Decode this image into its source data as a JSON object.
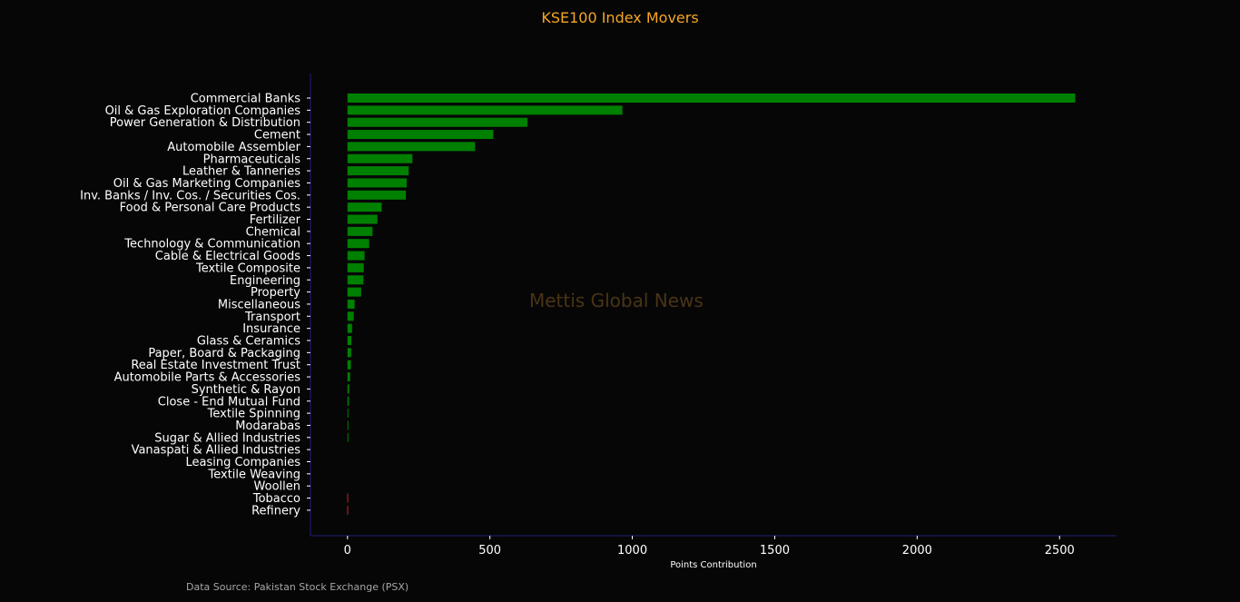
{
  "chart_data": {
    "type": "bar",
    "orientation": "horizontal",
    "title": "KSE100 Index Movers",
    "xlabel": "Points Contribution",
    "ylabel": "",
    "xlim": [
      -130,
      2700
    ],
    "xticks": [
      0,
      500,
      1000,
      1500,
      2000,
      2500
    ],
    "grid": false,
    "categories": [
      "Commercial Banks",
      "Oil & Gas Exploration Companies",
      "Power Generation & Distribution",
      "Cement",
      "Automobile Assembler",
      "Pharmaceuticals",
      "Leather & Tanneries",
      "Oil & Gas Marketing Companies",
      "Inv. Banks / Inv. Cos. / Securities Cos.",
      "Food & Personal Care Products",
      "Fertilizer",
      "Chemical",
      "Technology & Communication",
      "Cable & Electrical Goods",
      "Textile Composite",
      "Engineering",
      "Property",
      "Miscellaneous",
      "Transport",
      "Insurance",
      "Glass & Ceramics",
      "Paper, Board & Packaging",
      "Real Estate Investment Trust",
      "Automobile Parts & Accessories",
      "Synthetic & Rayon",
      "Close - End Mutual Fund",
      "Textile Spinning",
      "Modarabas",
      "Sugar & Allied Industries",
      "Vanaspati & Allied Industries",
      "Leasing Companies",
      "Textile Weaving",
      "Woollen",
      "Tobacco",
      "Refinery"
    ],
    "values": [
      2555,
      965,
      632,
      512,
      448,
      228,
      215,
      208,
      205,
      120,
      105,
      88,
      76,
      60,
      57,
      56,
      48,
      25,
      22,
      16,
      14,
      13,
      12,
      9,
      6,
      5,
      3,
      2,
      2,
      0,
      0,
      0,
      0,
      -1,
      -1
    ],
    "colors": {
      "positive": "#008000",
      "negative": "#cc2222",
      "title": "#f5a623",
      "axis": "#1f1f7a",
      "text": "#ffffff",
      "background": "#060606"
    }
  },
  "watermark": "Mettis Global News",
  "source_note": "Data Source: Pakistan Stock Exchange (PSX)"
}
